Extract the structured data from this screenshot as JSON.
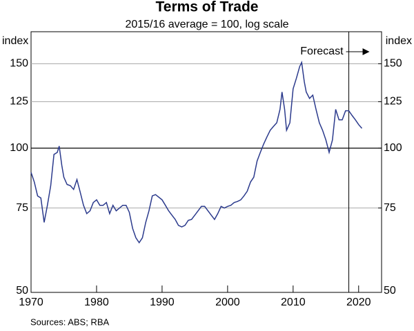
{
  "chart_data": {
    "type": "line",
    "title": "Terms of Trade",
    "subtitle": "2015/16 average = 100, log scale",
    "ylabel": "index",
    "y2label": "index",
    "source": "Sources: ABS; RBA",
    "annotation": "Forecast",
    "forecast_x": 2018.5,
    "log_scale": true,
    "grid": true,
    "reference_y": 100,
    "xlim": [
      1970,
      2023.5
    ],
    "xticks": [
      1970,
      1980,
      1990,
      2000,
      2010,
      2020
    ],
    "ylim": [
      50,
      175
    ],
    "yticks": [
      50,
      75,
      100,
      125,
      150
    ],
    "y2lim": [
      50,
      175
    ],
    "y2ticks": [
      50,
      75,
      100,
      125,
      150
    ],
    "x": [
      1970,
      1970.5,
      1971,
      1971.5,
      1972,
      1972.5,
      1973,
      1973.5,
      1974,
      1974.3,
      1974.7,
      1975,
      1975.5,
      1976,
      1976.5,
      1977,
      1977.5,
      1978,
      1978.5,
      1979,
      1979.5,
      1980,
      1980.5,
      1981,
      1981.5,
      1982,
      1982.5,
      1983,
      1983.5,
      1984,
      1984.5,
      1985,
      1985.5,
      1986,
      1986.5,
      1987,
      1987.5,
      1988,
      1988.5,
      1989,
      1989.5,
      1990,
      1990.5,
      1991,
      1991.5,
      1992,
      1992.5,
      1993,
      1993.5,
      1994,
      1994.5,
      1995,
      1995.5,
      1996,
      1996.5,
      1997,
      1997.5,
      1998,
      1998.5,
      1999,
      1999.5,
      2000,
      2000.5,
      2001,
      2001.5,
      2002,
      2002.5,
      2003,
      2003.5,
      2004,
      2004.5,
      2005,
      2005.5,
      2006,
      2006.5,
      2007,
      2007.5,
      2008,
      2008.3,
      2008.7,
      2009,
      2009.5,
      2010,
      2010.5,
      2011,
      2011.3,
      2011.7,
      2012,
      2012.5,
      2013,
      2013.5,
      2014,
      2014.5,
      2015,
      2015.5,
      2016,
      2016.5,
      2017,
      2017.5,
      2018,
      2018.5,
      2019,
      2019.5,
      2020,
      2020.5
    ],
    "series": [
      {
        "name": "Terms of trade",
        "color": "#2b3a8c",
        "values": [
          89,
          85,
          79.5,
          78.7,
          70,
          76,
          83.5,
          97,
          98,
          101,
          92,
          87,
          84,
          83.5,
          82,
          86,
          81,
          76,
          73,
          74,
          77,
          78,
          76,
          76,
          77,
          73,
          76,
          74,
          75,
          76,
          76,
          73.5,
          68,
          65,
          63.5,
          65,
          70,
          74,
          79.5,
          80,
          79,
          78,
          76,
          74,
          72.5,
          71,
          69,
          68.5,
          69,
          70.7,
          71,
          72.5,
          74,
          75.6,
          75.6,
          74,
          72.5,
          71,
          73,
          75.6,
          75,
          75.6,
          76,
          77,
          77.4,
          78,
          79.5,
          81.3,
          85,
          87,
          94,
          98,
          102,
          105.5,
          109,
          111,
          113,
          120.5,
          131,
          120.5,
          109,
          113,
          133,
          140,
          148,
          151,
          137.6,
          131,
          127,
          129,
          120.5,
          113,
          109,
          104,
          98,
          104,
          120.5,
          114.6,
          114.6,
          119.7,
          119.7,
          117,
          114.6,
          112,
          110
        ]
      }
    ]
  }
}
